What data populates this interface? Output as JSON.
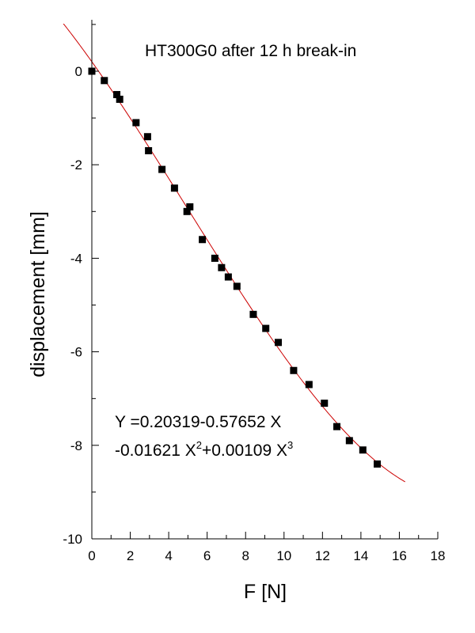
{
  "chart_data": {
    "type": "scatter",
    "title": "HT300G0 after 12 h break-in",
    "xlabel": "F [N]",
    "ylabel": "displacement [mm]",
    "xlim": [
      0,
      18
    ],
    "ylim": [
      -10,
      1.1
    ],
    "x_ticks": [
      0,
      2,
      4,
      6,
      8,
      10,
      12,
      14,
      16,
      18
    ],
    "y_ticks": [
      0,
      -2,
      -4,
      -6,
      -8,
      -10
    ],
    "grid": false,
    "colors": {
      "points": "#000000",
      "fit": "#cc0000"
    },
    "series": [
      {
        "marker": "square",
        "x": [
          0.0,
          0.65,
          1.3,
          1.45,
          2.3,
          2.9,
          2.95,
          3.65,
          4.3,
          4.95,
          5.1,
          5.75,
          6.4,
          6.75,
          7.1,
          7.55,
          8.4,
          9.05,
          9.7,
          10.5,
          11.3,
          12.1,
          12.75,
          13.4,
          14.1,
          14.85
        ],
        "y": [
          0.0,
          -0.2,
          -0.5,
          -0.6,
          -1.1,
          -1.4,
          -1.7,
          -2.1,
          -2.5,
          -3.0,
          -2.9,
          -3.6,
          -4.0,
          -4.2,
          -4.4,
          -4.6,
          -5.2,
          -5.5,
          -5.8,
          -6.4,
          -6.7,
          -7.1,
          -7.6,
          -7.9,
          -8.1,
          -8.4
        ]
      }
    ],
    "fit": {
      "type": "polynomial",
      "coefficients": [
        0.20319,
        -0.57652,
        -0.01621,
        0.00109
      ],
      "x_range": [
        -1.6,
        16.3
      ]
    },
    "annotation": {
      "line1": "Y =0.20319-0.57652 X",
      "line2_a": "-0.01621 X",
      "line2_b": "+0.00109 X",
      "sup_2": "2",
      "sup_3": "3"
    }
  }
}
